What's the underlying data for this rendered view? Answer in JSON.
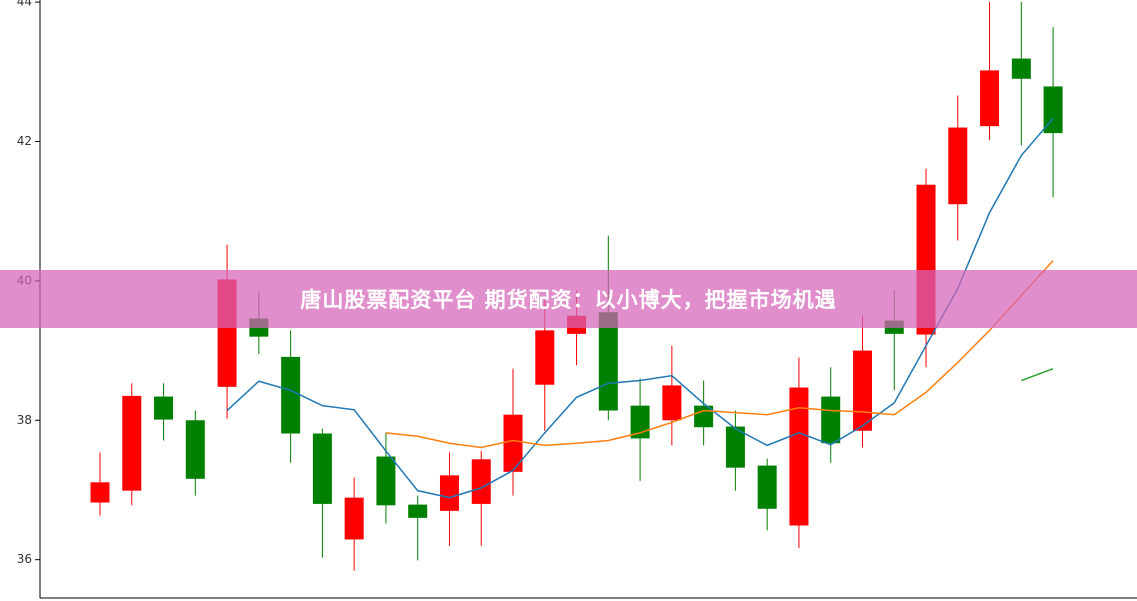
{
  "chart_data": {
    "type": "candlestick",
    "open": [
      36.82,
      36.99,
      38.34,
      38.0,
      38.48,
      39.46,
      38.91,
      37.81,
      36.29,
      37.48,
      36.79,
      36.7,
      36.8,
      37.26,
      38.51,
      39.24,
      39.55,
      38.21,
      38.0,
      38.21,
      37.91,
      37.35,
      36.49,
      38.34,
      37.85,
      39.43,
      39.23,
      41.1,
      42.22,
      43.19,
      42.79
    ],
    "high": [
      37.54,
      38.53,
      38.53,
      38.14,
      40.52,
      39.85,
      39.29,
      37.88,
      37.18,
      37.82,
      36.92,
      37.54,
      37.56,
      38.74,
      39.72,
      39.86,
      40.65,
      38.6,
      39.07,
      38.57,
      38.14,
      37.45,
      38.9,
      38.76,
      39.5,
      39.86,
      41.61,
      42.66,
      44.0,
      44.0,
      43.64
    ],
    "low": [
      36.63,
      36.78,
      37.71,
      36.92,
      38.02,
      38.95,
      37.39,
      36.03,
      35.84,
      36.52,
      35.99,
      36.2,
      36.2,
      36.92,
      37.85,
      38.79,
      38.0,
      37.13,
      37.64,
      37.64,
      36.99,
      36.42,
      36.17,
      37.39,
      37.61,
      38.43,
      38.76,
      40.58,
      42.02,
      41.94,
      41.2
    ],
    "close": [
      37.11,
      38.35,
      38.01,
      37.16,
      40.02,
      39.2,
      37.81,
      36.8,
      36.89,
      36.78,
      36.6,
      37.21,
      37.44,
      38.08,
      39.29,
      39.5,
      38.14,
      37.74,
      38.5,
      37.9,
      37.32,
      36.73,
      38.47,
      37.67,
      39.0,
      39.24,
      41.38,
      42.2,
      43.02,
      42.9,
      42.12
    ],
    "up_color": "#ff0000",
    "down_color": "#008000",
    "series": [
      {
        "color": "#1f77b4",
        "values": [
          null,
          null,
          null,
          null,
          38.14,
          38.56,
          38.43,
          38.21,
          38.15,
          37.56,
          36.99,
          36.89,
          37.03,
          37.28,
          37.82,
          38.33,
          38.53,
          38.57,
          38.64,
          38.24,
          37.88,
          37.64,
          37.82,
          37.65,
          37.92,
          38.25,
          39.07,
          39.89,
          40.98,
          41.8,
          42.33
        ]
      },
      {
        "color": "#ff7f0e",
        "values": [
          null,
          null,
          null,
          null,
          null,
          null,
          null,
          null,
          null,
          37.82,
          37.77,
          37.67,
          37.61,
          37.71,
          37.64,
          37.67,
          37.71,
          37.82,
          37.97,
          38.14,
          38.11,
          38.08,
          38.18,
          38.14,
          38.12,
          38.08,
          38.4,
          38.83,
          39.29,
          39.79,
          40.29
        ]
      },
      {
        "color": "#2ca02c",
        "values": [
          null,
          null,
          null,
          null,
          null,
          null,
          null,
          null,
          null,
          null,
          null,
          null,
          null,
          null,
          null,
          null,
          null,
          null,
          null,
          null,
          null,
          null,
          null,
          null,
          null,
          null,
          null,
          null,
          null,
          38.57,
          38.74
        ]
      }
    ],
    "ylim": [
      35.45,
      44.03
    ],
    "yticks": [
      36,
      38,
      40,
      42,
      44
    ]
  },
  "banner": {
    "text": "唐山股票配资平台 期货配资：以小博大，把握市场机遇"
  }
}
